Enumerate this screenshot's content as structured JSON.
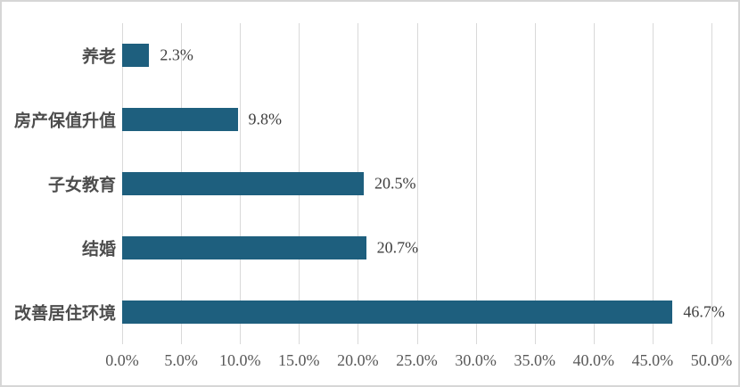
{
  "chart_data": {
    "type": "bar",
    "orientation": "horizontal",
    "title": "",
    "xlabel": "",
    "ylabel": "",
    "categories": [
      "养老",
      "房产保值升值",
      "子女教育",
      "结婚",
      "改善居住环境"
    ],
    "values": [
      2.3,
      9.8,
      20.5,
      20.7,
      46.7
    ],
    "value_labels": [
      "2.3%",
      "9.8%",
      "20.5%",
      "20.7%",
      "46.7%"
    ],
    "x_ticks": [
      "0.0%",
      "5.0%",
      "10.0%",
      "15.0%",
      "20.0%",
      "25.0%",
      "30.0%",
      "35.0%",
      "40.0%",
      "45.0%",
      "50.0%"
    ],
    "x_tick_values": [
      0,
      5,
      10,
      15,
      20,
      25,
      30,
      35,
      40,
      45,
      50
    ],
    "xlim": [
      0,
      50
    ],
    "grid": "vertical-only",
    "legend": "none",
    "colors": {
      "bar": "#1e5f7e",
      "gridline": "#d9d9d9",
      "category_label": "#4d4d4d",
      "value_label": "#3f3f3f",
      "tick_label": "#595959",
      "frame_border": "#d6d6d6",
      "background": "#ffffff"
    }
  }
}
